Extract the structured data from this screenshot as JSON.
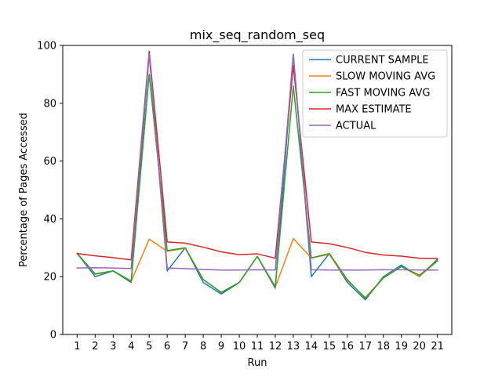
{
  "chart_data": {
    "type": "line",
    "title": "mix_seq_random_seq",
    "xlabel": "Run",
    "ylabel": "Percentage of Pages Accessed",
    "x": [
      1,
      2,
      3,
      4,
      5,
      6,
      7,
      8,
      9,
      10,
      11,
      12,
      13,
      14,
      15,
      16,
      17,
      18,
      19,
      20,
      21
    ],
    "xlim": [
      0.2,
      21.8
    ],
    "ylim": [
      0,
      100
    ],
    "yticks": [
      0,
      20,
      40,
      60,
      80,
      100
    ],
    "grid": false,
    "legend_position": "upper-right",
    "series": [
      {
        "name": "CURRENT SAMPLE",
        "color": "#1f77b4",
        "values": [
          28,
          20,
          22,
          18,
          97,
          22,
          30,
          18,
          14,
          18,
          27,
          16,
          97,
          20,
          28,
          18,
          12,
          20,
          24,
          20,
          26
        ]
      },
      {
        "name": "SLOW MOVING AVG",
        "color": "#ff7f0e",
        "values": [
          28,
          20.8,
          22,
          18.4,
          33,
          28.8,
          29.8,
          19,
          14.6,
          18,
          27,
          16.4,
          33.2,
          26.5,
          27.7,
          18.7,
          12.8,
          19.6,
          23.5,
          20.1,
          25.4
        ]
      },
      {
        "name": "FAST MOVING AVG",
        "color": "#2ca02c",
        "values": [
          28,
          21,
          22,
          18.5,
          90,
          29,
          30,
          19,
          14.5,
          18,
          27,
          16.5,
          86,
          26.5,
          28,
          19,
          12.5,
          19.5,
          23.5,
          20.5,
          25.5
        ]
      },
      {
        "name": "MAX ESTIMATE",
        "color": "#d62728",
        "values": [
          28,
          27.2,
          26.6,
          25.8,
          98,
          32,
          31.6,
          30.2,
          28.6,
          27.6,
          27.9,
          26.4,
          93,
          32,
          31.4,
          30.1,
          28.4,
          27.5,
          27.1,
          26.4,
          26.3
        ]
      },
      {
        "name": "ACTUAL",
        "color": "#9467bd",
        "values": [
          23,
          23.1,
          23,
          22.8,
          97,
          23,
          22.8,
          22.5,
          22.3,
          22.3,
          22.4,
          22.3,
          97,
          22.4,
          22.3,
          22.3,
          22.3,
          22.4,
          22.4,
          22.3,
          22.3
        ]
      }
    ]
  }
}
